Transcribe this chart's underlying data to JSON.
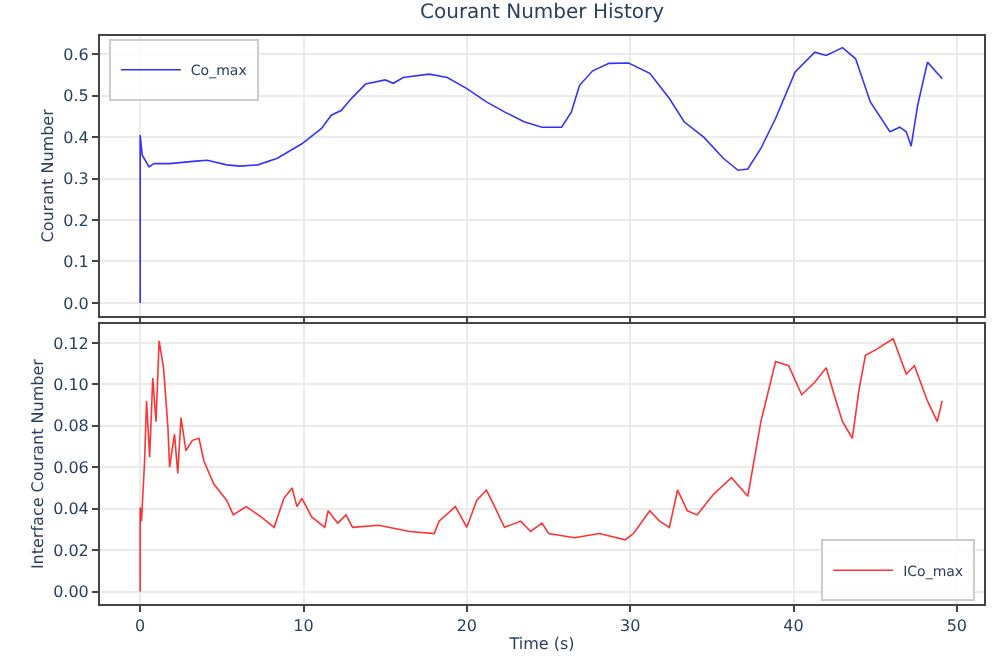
{
  "chart_data": [
    {
      "type": "line",
      "title": "Courant Number History",
      "ylabel": "Courant Number",
      "xlim": [
        -2.46,
        51.66
      ],
      "xticks": [
        0,
        10,
        20,
        30,
        40,
        50
      ],
      "ylim": [
        -0.031,
        0.644
      ],
      "yticks": [
        {
          "value": 0,
          "label": "0.0"
        },
        0.1,
        0.2,
        0.3,
        0.4,
        0.5,
        0.6
      ],
      "tick_labels": "y",
      "grid": true,
      "legend": "top left",
      "series": [
        {
          "name": "Co_max",
          "color": "#0000ff",
          "x": [
            0,
            0,
            0.12,
            0.54,
            0.85,
            1.8,
            3.4,
            4.1,
            5.3,
            6.1,
            7.2,
            8.4,
            9.9,
            11.1,
            11.7,
            12.3,
            13,
            13.8,
            15,
            15.5,
            16.1,
            17.7,
            18.8,
            20,
            21.2,
            22.3,
            23.5,
            24.6,
            25.8,
            26.4,
            26.9,
            27.7,
            28.7,
            29.9,
            31.2,
            32.4,
            33.3,
            34.5,
            35.7,
            36.6,
            37.2,
            38,
            38.9,
            40.1,
            41.3,
            42,
            43,
            43.8,
            44.7,
            45.9,
            46.5,
            46.9,
            47.2,
            47.6,
            48.2,
            49.1
          ],
          "values": [
            0,
            0.405,
            0.357,
            0.328,
            0.336,
            0.336,
            0.342,
            0.344,
            0.333,
            0.33,
            0.333,
            0.349,
            0.384,
            0.421,
            0.453,
            0.464,
            0.496,
            0.528,
            0.538,
            0.53,
            0.544,
            0.552,
            0.544,
            0.517,
            0.485,
            0.461,
            0.437,
            0.424,
            0.424,
            0.461,
            0.525,
            0.56,
            0.578,
            0.579,
            0.554,
            0.493,
            0.437,
            0.4,
            0.349,
            0.32,
            0.323,
            0.373,
            0.445,
            0.557,
            0.605,
            0.597,
            0.616,
            0.589,
            0.485,
            0.413,
            0.424,
            0.413,
            0.378,
            0.477,
            0.581,
            0.541
          ]
        }
      ]
    },
    {
      "type": "line",
      "xlabel": "Time (s)",
      "ylabel": "Interface Courant Number",
      "xlim": [
        -2.46,
        51.66
      ],
      "xticks": [
        0,
        10,
        20,
        30,
        40,
        50
      ],
      "ylim": [
        -0.006,
        0.129
      ],
      "yticks": [
        {
          "value": 0,
          "label": "0.00"
        },
        {
          "value": 0.02,
          "label": "0.02"
        },
        {
          "value": 0.04,
          "label": "0.04"
        },
        {
          "value": 0.06,
          "label": "0.06"
        },
        {
          "value": 0.08,
          "label": "0.08"
        },
        {
          "value": 0.1,
          "label": "0.10"
        },
        {
          "value": 0.12,
          "label": "0.12"
        }
      ],
      "grid": true,
      "legend": "bottom right",
      "series": [
        {
          "name": "ICo_max",
          "color": "#ff0000",
          "x": [
            0,
            0,
            0.08,
            0.27,
            0.39,
            0.58,
            0.77,
            0.97,
            1.16,
            1.43,
            1.7,
            1.8,
            2.1,
            2.3,
            2.5,
            2.8,
            3.2,
            3.6,
            3.9,
            4.5,
            5.3,
            5.7,
            6.5,
            7.4,
            8.2,
            8.8,
            9.3,
            9.6,
            9.9,
            10.5,
            11.3,
            11.5,
            12.1,
            12.6,
            13,
            14.6,
            16.5,
            18,
            18.3,
            19.3,
            20,
            20.6,
            21.2,
            21.7,
            22.3,
            23.3,
            23.9,
            24.6,
            25,
            26.6,
            28.1,
            29.7,
            30.2,
            31.2,
            31.8,
            32.4,
            32.9,
            33.5,
            34.1,
            35.1,
            36.2,
            37.2,
            38,
            38.9,
            39.7,
            40.5,
            41.3,
            42,
            42.6,
            43,
            43.6,
            44,
            44.4,
            45.1,
            46.1,
            46.9,
            47.4,
            48.2,
            48.8,
            49.1
          ],
          "values": [
            0,
            0.0406,
            0.034,
            0.063,
            0.092,
            0.065,
            0.103,
            0.082,
            0.121,
            0.108,
            0.079,
            0.06,
            0.076,
            0.057,
            0.084,
            0.068,
            0.073,
            0.074,
            0.063,
            0.052,
            0.044,
            0.037,
            0.041,
            0.036,
            0.031,
            0.045,
            0.05,
            0.041,
            0.045,
            0.036,
            0.031,
            0.039,
            0.033,
            0.037,
            0.031,
            0.032,
            0.029,
            0.028,
            0.034,
            0.041,
            0.031,
            0.044,
            0.049,
            0.041,
            0.031,
            0.034,
            0.029,
            0.033,
            0.028,
            0.026,
            0.028,
            0.025,
            0.028,
            0.039,
            0.034,
            0.031,
            0.049,
            0.039,
            0.037,
            0.047,
            0.055,
            0.046,
            0.082,
            0.111,
            0.109,
            0.095,
            0.101,
            0.108,
            0.092,
            0.082,
            0.074,
            0.097,
            0.114,
            0.117,
            0.122,
            0.105,
            0.109,
            0.092,
            0.082,
            0.092
          ]
        }
      ]
    }
  ]
}
